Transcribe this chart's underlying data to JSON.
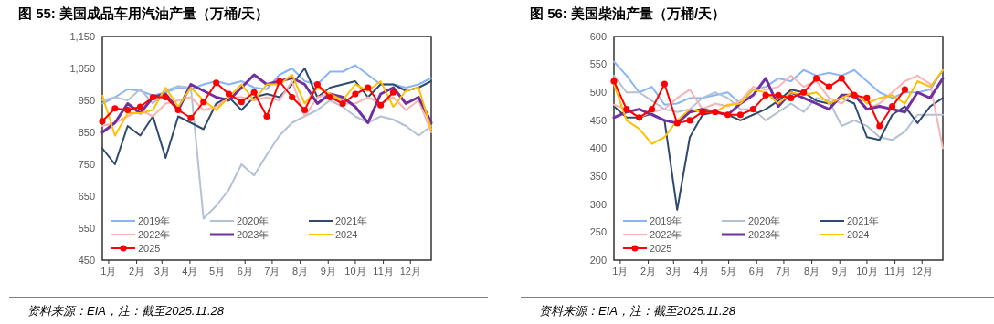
{
  "chart_data": [
    {
      "type": "line",
      "title": "图 55:  美国成品车用汽油产量（万桶/天）",
      "annotations": [
        "资料来源：EIA，注：截至2025.11.28"
      ],
      "legend": "bottom",
      "xlim": [
        "--01-01",
        "--12-31"
      ],
      "xticks": [
        {
          "value": "--01-08",
          "label": "1月"
        },
        {
          "value": "--02-08",
          "label": "2月"
        },
        {
          "value": "--03-08",
          "label": "3月"
        },
        {
          "value": "--04-08",
          "label": "4月"
        },
        {
          "value": "--05-08",
          "label": "5月"
        },
        {
          "value": "--06-08",
          "label": "6月"
        },
        {
          "value": "--07-08",
          "label": "7月"
        },
        {
          "value": "--08-08",
          "label": "8月"
        },
        {
          "value": "--09-08",
          "label": "9月"
        },
        {
          "value": "--10-08",
          "label": "10月"
        },
        {
          "value": "--11-08",
          "label": "11月"
        },
        {
          "value": "--12-08",
          "label": "12月"
        }
      ],
      "ylim": [
        450,
        1150
      ],
      "yticks": [
        450,
        550,
        650,
        750,
        850,
        950,
        {
          "value": 1050,
          "label": "1,050"
        },
        {
          "value": 1150,
          "label": "1,150"
        }
      ],
      "series": [
        {
          "name": "2019年",
          "color": "#8ab4f8",
          "x": [
            "--01-01",
            "--01-15",
            "--01-29",
            "--02-12",
            "--02-26",
            "--03-12",
            "--03-26",
            "--04-09",
            "--04-23",
            "--05-07",
            "--05-21",
            "--06-04",
            "--06-18",
            "--07-02",
            "--07-16",
            "--07-30",
            "--08-13",
            "--08-27",
            "--09-10",
            "--09-24",
            "--10-08",
            "--10-22",
            "--11-05",
            "--11-19",
            "--12-03",
            "--12-17",
            "--12-31"
          ],
          "values": [
            940,
            960,
            985,
            980,
            965,
            975,
            990,
            985,
            1000,
            1010,
            1000,
            1010,
            990,
            985,
            1030,
            1050,
            1010,
            1000,
            1040,
            1040,
            1060,
            1030,
            1000,
            1000,
            990,
            1000,
            1020
          ]
        },
        {
          "name": "2020年",
          "color": "#b4c0d4",
          "x": [
            "--01-01",
            "--01-15",
            "--01-29",
            "--02-12",
            "--02-26",
            "--03-12",
            "--03-26",
            "--04-09",
            "--04-23",
            "--05-07",
            "--05-21",
            "--06-04",
            "--06-18",
            "--07-02",
            "--07-16",
            "--07-30",
            "--08-13",
            "--08-27",
            "--09-10",
            "--09-24",
            "--10-08",
            "--10-22",
            "--11-05",
            "--11-19",
            "--12-03",
            "--12-17",
            "--12-31"
          ],
          "values": [
            950,
            960,
            950,
            985,
            940,
            980,
            995,
            990,
            580,
            620,
            670,
            750,
            715,
            780,
            840,
            880,
            900,
            920,
            950,
            930,
            900,
            880,
            900,
            890,
            870,
            840,
            870
          ]
        },
        {
          "name": "2021年",
          "color": "#2f4a6e",
          "x": [
            "--01-01",
            "--01-15",
            "--01-29",
            "--02-12",
            "--02-26",
            "--03-12",
            "--03-26",
            "--04-09",
            "--04-23",
            "--05-07",
            "--05-21",
            "--06-04",
            "--06-18",
            "--07-02",
            "--07-16",
            "--07-30",
            "--08-13",
            "--08-27",
            "--09-10",
            "--09-24",
            "--10-08",
            "--10-22",
            "--11-05",
            "--11-19",
            "--12-03",
            "--12-17",
            "--12-31"
          ],
          "values": [
            800,
            750,
            870,
            840,
            900,
            770,
            900,
            880,
            860,
            940,
            960,
            920,
            960,
            970,
            960,
            1000,
            1050,
            960,
            990,
            1000,
            1010,
            960,
            1000,
            1000,
            980,
            990,
            1010
          ]
        },
        {
          "name": "2022年",
          "color": "#f8b4b4",
          "x": [
            "--01-01",
            "--01-15",
            "--01-29",
            "--02-12",
            "--02-26",
            "--03-12",
            "--03-26",
            "--04-09",
            "--04-23",
            "--05-07",
            "--05-21",
            "--06-04",
            "--06-18",
            "--07-02",
            "--07-16",
            "--07-30",
            "--08-13",
            "--08-27",
            "--09-10",
            "--09-24",
            "--10-08",
            "--10-22",
            "--11-05",
            "--11-19",
            "--12-03",
            "--12-17",
            "--12-31"
          ],
          "values": [
            870,
            880,
            900,
            920,
            900,
            940,
            950,
            960,
            920,
            930,
            960,
            960,
            950,
            960,
            950,
            1010,
            900,
            960,
            970,
            940,
            940,
            960,
            940,
            960,
            920,
            950,
            850
          ]
        },
        {
          "name": "2023年",
          "color": "#7030a0",
          "x": [
            "--01-01",
            "--01-15",
            "--01-29",
            "--02-12",
            "--02-26",
            "--03-12",
            "--03-26",
            "--04-09",
            "--04-23",
            "--05-07",
            "--05-21",
            "--06-04",
            "--06-18",
            "--07-02",
            "--07-16",
            "--07-30",
            "--08-13",
            "--08-27",
            "--09-10",
            "--09-24",
            "--10-08",
            "--10-22",
            "--11-05",
            "--11-19",
            "--12-03",
            "--12-17",
            "--12-31"
          ],
          "values": [
            850,
            880,
            940,
            910,
            960,
            970,
            920,
            1000,
            980,
            960,
            950,
            990,
            1030,
            1000,
            1010,
            1020,
            1000,
            940,
            970,
            960,
            930,
            880,
            970,
            990,
            940,
            960,
            880
          ]
        },
        {
          "name": "2024",
          "color": "#ffc000",
          "x": [
            "--01-01",
            "--01-15",
            "--01-29",
            "--02-12",
            "--02-26",
            "--03-12",
            "--03-26",
            "--04-09",
            "--04-23",
            "--05-07",
            "--05-21",
            "--06-04",
            "--06-18",
            "--07-02",
            "--07-16",
            "--07-30",
            "--08-13",
            "--08-27",
            "--09-10",
            "--09-24",
            "--10-08",
            "--10-22",
            "--11-05",
            "--11-19",
            "--12-03",
            "--12-17",
            "--12-31"
          ],
          "values": [
            965,
            840,
            910,
            910,
            920,
            990,
            930,
            990,
            950,
            920,
            960,
            1000,
            950,
            1000,
            1000,
            1030,
            940,
            990,
            970,
            950,
            1000,
            980,
            1010,
            930,
            980,
            990,
            860
          ]
        },
        {
          "name": "2025",
          "color": "#ff0000",
          "marker": "circle",
          "x": [
            "--01-01",
            "--01-15",
            "--01-29",
            "--02-12",
            "--02-26",
            "--03-12",
            "--03-26",
            "--04-09",
            "--04-23",
            "--05-07",
            "--05-21",
            "--06-04",
            "--06-18",
            "--07-02",
            "--07-16",
            "--07-30",
            "--08-13",
            "--08-27",
            "--09-10",
            "--09-24",
            "--10-08",
            "--10-22",
            "--11-05",
            "--11-19"
          ],
          "values": [
            885,
            925,
            920,
            930,
            960,
            960,
            920,
            895,
            945,
            1005,
            970,
            945,
            975,
            900,
            1010,
            960,
            920,
            1000,
            960,
            940,
            970,
            990,
            935,
            975
          ]
        }
      ]
    },
    {
      "type": "line",
      "title": "图 56:  美国柴油产量（万桶/天）",
      "annotations": [
        "资料来源：EIA，注：截至2025.11.28"
      ],
      "legend": "bottom",
      "xlim": [
        "--01-01",
        "--12-31"
      ],
      "xticks": [
        {
          "value": "--01-08",
          "label": "1月"
        },
        {
          "value": "--02-08",
          "label": "2月"
        },
        {
          "value": "--03-08",
          "label": "3月"
        },
        {
          "value": "--04-08",
          "label": "4月"
        },
        {
          "value": "--05-08",
          "label": "5月"
        },
        {
          "value": "--06-08",
          "label": "6月"
        },
        {
          "value": "--07-08",
          "label": "7月"
        },
        {
          "value": "--08-08",
          "label": "8月"
        },
        {
          "value": "--09-08",
          "label": "9月"
        },
        {
          "value": "--10-08",
          "label": "10月"
        },
        {
          "value": "--11-08",
          "label": "11月"
        },
        {
          "value": "--12-08",
          "label": "12月"
        }
      ],
      "ylim": [
        200,
        600
      ],
      "yticks": [
        200,
        250,
        300,
        350,
        400,
        450,
        500,
        550,
        600
      ],
      "series": [
        {
          "name": "2019年",
          "color": "#8ab4f8",
          "x": [
            "--01-01",
            "--01-15",
            "--01-29",
            "--02-12",
            "--02-26",
            "--03-12",
            "--03-26",
            "--04-09",
            "--04-23",
            "--05-07",
            "--05-21",
            "--06-04",
            "--06-18",
            "--07-02",
            "--07-16",
            "--07-30",
            "--08-13",
            "--08-27",
            "--09-10",
            "--09-24",
            "--10-08",
            "--10-22",
            "--11-05",
            "--11-19",
            "--12-03",
            "--12-17",
            "--12-31"
          ],
          "values": [
            555,
            530,
            500,
            510,
            478,
            480,
            490,
            490,
            495,
            500,
            480,
            505,
            510,
            525,
            520,
            540,
            530,
            535,
            530,
            540,
            520,
            500,
            490,
            500,
            500,
            505,
            540
          ]
        },
        {
          "name": "2020年",
          "color": "#b4c0d4",
          "x": [
            "--01-01",
            "--01-15",
            "--01-29",
            "--02-12",
            "--02-26",
            "--03-12",
            "--03-26",
            "--04-09",
            "--04-23",
            "--05-07",
            "--05-21",
            "--06-04",
            "--06-18",
            "--07-02",
            "--07-16",
            "--07-30",
            "--08-13",
            "--08-27",
            "--09-10",
            "--09-24",
            "--10-08",
            "--10-22",
            "--11-05",
            "--11-19",
            "--12-03",
            "--12-17",
            "--12-31"
          ],
          "values": [
            530,
            500,
            500,
            485,
            470,
            465,
            470,
            490,
            500,
            490,
            470,
            470,
            450,
            465,
            480,
            465,
            490,
            485,
            440,
            450,
            440,
            420,
            415,
            430,
            460,
            460,
            460
          ]
        },
        {
          "name": "2021年",
          "color": "#2f4a6e",
          "x": [
            "--01-01",
            "--01-15",
            "--01-29",
            "--02-12",
            "--02-26",
            "--03-12",
            "--03-26",
            "--04-09",
            "--04-23",
            "--05-07",
            "--05-21",
            "--06-04",
            "--06-18",
            "--07-02",
            "--07-16",
            "--07-30",
            "--08-13",
            "--08-27",
            "--09-10",
            "--09-24",
            "--10-08",
            "--10-22",
            "--11-05",
            "--11-19",
            "--12-03",
            "--12-17",
            "--12-31"
          ],
          "values": [
            475,
            455,
            455,
            462,
            450,
            290,
            420,
            460,
            465,
            460,
            450,
            460,
            470,
            485,
            505,
            500,
            485,
            480,
            490,
            480,
            420,
            415,
            460,
            475,
            445,
            475,
            490
          ]
        },
        {
          "name": "2022年",
          "color": "#f8b4b4",
          "x": [
            "--01-01",
            "--01-15",
            "--01-29",
            "--02-12",
            "--02-26",
            "--03-12",
            "--03-26",
            "--04-09",
            "--04-23",
            "--05-07",
            "--05-21",
            "--06-04",
            "--06-18",
            "--07-02",
            "--07-16",
            "--07-30",
            "--08-13",
            "--08-27",
            "--09-10",
            "--09-24",
            "--10-08",
            "--10-22",
            "--11-05",
            "--11-19",
            "--12-03",
            "--12-17",
            "--12-31"
          ],
          "values": [
            478,
            470,
            455,
            465,
            470,
            490,
            505,
            470,
            480,
            475,
            485,
            510,
            505,
            510,
            530,
            510,
            520,
            490,
            480,
            500,
            470,
            480,
            500,
            520,
            530,
            515,
            400
          ]
        },
        {
          "name": "2023年",
          "color": "#7030a0",
          "x": [
            "--01-01",
            "--01-15",
            "--01-29",
            "--02-12",
            "--02-26",
            "--03-12",
            "--03-26",
            "--04-09",
            "--04-23",
            "--05-07",
            "--05-21",
            "--06-04",
            "--06-18",
            "--07-02",
            "--07-16",
            "--07-30",
            "--08-13",
            "--08-27",
            "--09-10",
            "--09-24",
            "--10-08",
            "--10-22",
            "--11-05",
            "--11-19",
            "--12-03",
            "--12-17",
            "--12-31"
          ],
          "values": [
            455,
            465,
            470,
            460,
            450,
            445,
            465,
            470,
            465,
            460,
            480,
            495,
            525,
            475,
            500,
            490,
            480,
            470,
            495,
            495,
            470,
            475,
            470,
            465,
            500,
            490,
            525
          ]
        },
        {
          "name": "2024",
          "color": "#ffc000",
          "x": [
            "--01-01",
            "--01-15",
            "--01-29",
            "--02-12",
            "--02-26",
            "--03-12",
            "--03-26",
            "--04-09",
            "--04-23",
            "--05-07",
            "--05-21",
            "--06-04",
            "--06-18",
            "--07-02",
            "--07-16",
            "--07-30",
            "--08-13",
            "--08-27",
            "--09-10",
            "--09-24",
            "--10-08",
            "--10-22",
            "--11-05",
            "--11-19",
            "--12-03",
            "--12-17",
            "--12-31"
          ],
          "values": [
            515,
            450,
            435,
            408,
            420,
            450,
            470,
            465,
            465,
            478,
            480,
            505,
            500,
            480,
            500,
            495,
            500,
            480,
            490,
            500,
            480,
            490,
            495,
            480,
            520,
            510,
            540
          ]
        },
        {
          "name": "2025",
          "color": "#ff0000",
          "marker": "circle",
          "x": [
            "--01-01",
            "--01-15",
            "--01-29",
            "--02-12",
            "--02-26",
            "--03-12",
            "--03-26",
            "--04-09",
            "--04-23",
            "--05-07",
            "--05-21",
            "--06-04",
            "--06-18",
            "--07-02",
            "--07-16",
            "--07-30",
            "--08-13",
            "--08-27",
            "--09-10",
            "--09-24",
            "--10-08",
            "--10-22",
            "--11-05",
            "--11-19"
          ],
          "values": [
            520,
            470,
            455,
            470,
            515,
            445,
            450,
            465,
            465,
            460,
            460,
            470,
            495,
            495,
            490,
            500,
            525,
            510,
            525,
            495,
            490,
            440,
            475,
            505
          ]
        }
      ]
    }
  ]
}
